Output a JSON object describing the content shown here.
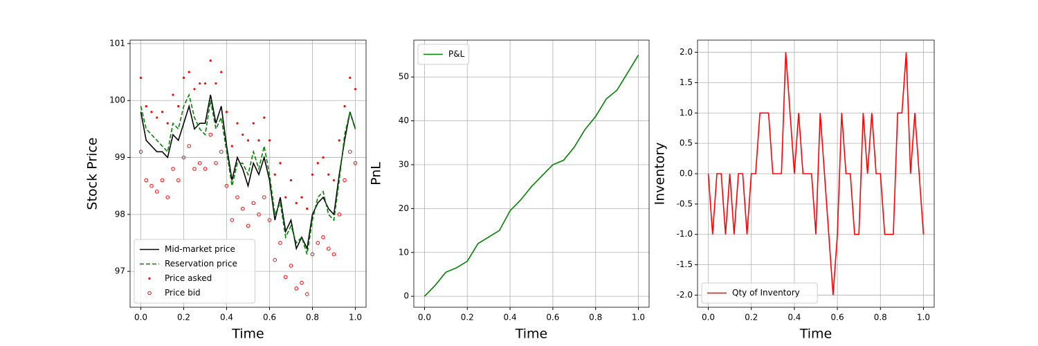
{
  "chart_data": [
    {
      "type": "line",
      "xlabel": "Time",
      "ylabel": "Stock Price",
      "x": [
        0,
        0.025,
        0.05,
        0.075,
        0.1,
        0.125,
        0.15,
        0.175,
        0.2,
        0.225,
        0.25,
        0.275,
        0.3,
        0.325,
        0.35,
        0.375,
        0.4,
        0.425,
        0.45,
        0.475,
        0.5,
        0.525,
        0.55,
        0.575,
        0.6,
        0.625,
        0.65,
        0.675,
        0.7,
        0.725,
        0.75,
        0.775,
        0.8,
        0.825,
        0.85,
        0.875,
        0.9,
        0.925,
        0.95,
        0.975,
        1.0
      ],
      "series": [
        {
          "name": "Mid-market price",
          "color": "#000000",
          "style": "solid",
          "values": [
            99.8,
            99.3,
            99.2,
            99.1,
            99.1,
            99.0,
            99.4,
            99.3,
            99.6,
            99.9,
            99.5,
            99.6,
            99.6,
            100.1,
            99.6,
            99.9,
            99.2,
            98.6,
            99.0,
            98.8,
            98.5,
            98.9,
            98.7,
            99.0,
            98.6,
            97.9,
            98.3,
            97.7,
            97.9,
            97.4,
            97.6,
            97.4,
            98.0,
            98.2,
            98.3,
            98.1,
            98.0,
            98.7,
            99.3,
            99.8,
            99.5
          ]
        },
        {
          "name": "Reservation price",
          "color": "#008000",
          "style": "dashed",
          "values": [
            99.9,
            99.5,
            99.4,
            99.3,
            99.2,
            99.1,
            99.6,
            99.5,
            99.9,
            100.1,
            99.7,
            99.5,
            99.4,
            100.0,
            99.5,
            99.7,
            99.1,
            98.5,
            98.9,
            98.9,
            98.7,
            99.1,
            98.8,
            99.2,
            98.7,
            98.0,
            98.2,
            97.6,
            97.8,
            97.5,
            97.6,
            97.3,
            97.9,
            98.3,
            98.4,
            98.0,
            97.9,
            98.6,
            99.4,
            99.8,
            99.5
          ]
        },
        {
          "name": "Price asked",
          "color": "#ff0000",
          "style": "dot",
          "values": [
            100.4,
            99.9,
            99.8,
            99.7,
            99.8,
            99.6,
            100.1,
            99.9,
            100.4,
            100.5,
            100.2,
            100.3,
            100.3,
            100.7,
            100.3,
            100.5,
            99.8,
            99.2,
            99.6,
            99.4,
            99.3,
            99.6,
            99.3,
            99.7,
            99.3,
            98.7,
            98.9,
            98.3,
            98.6,
            98.2,
            98.3,
            98.1,
            98.7,
            98.9,
            99.0,
            98.7,
            98.6,
            99.3,
            99.9,
            100.4,
            100.2
          ]
        },
        {
          "name": "Price bid",
          "color": "#ff0000",
          "style": "circle",
          "values": [
            99.1,
            98.6,
            98.5,
            98.4,
            98.6,
            98.3,
            98.8,
            98.6,
            99.0,
            99.2,
            98.8,
            98.9,
            98.8,
            99.4,
            98.9,
            99.1,
            98.5,
            97.9,
            98.3,
            98.1,
            97.8,
            98.2,
            98.0,
            98.3,
            97.9,
            97.2,
            97.5,
            96.9,
            97.1,
            96.7,
            96.8,
            96.6,
            97.3,
            97.5,
            97.6,
            97.4,
            97.3,
            98.0,
            98.6,
            99.1,
            98.9
          ]
        }
      ],
      "xlim": [
        -0.05,
        1.05
      ],
      "ylim": [
        96.37,
        101.06
      ],
      "xticks": [
        {
          "value": 0,
          "label": "0.0"
        },
        {
          "value": 0.2,
          "label": "0.2"
        },
        {
          "value": 0.4,
          "label": "0.4"
        },
        {
          "value": 0.6,
          "label": "0.6"
        },
        {
          "value": 0.8,
          "label": "0.8"
        },
        {
          "value": 1,
          "label": "1.0"
        }
      ],
      "yticks": [
        97,
        98,
        99,
        100,
        101
      ],
      "grid": true,
      "legend": "lower left"
    },
    {
      "type": "line",
      "xlabel": "Time",
      "ylabel": "PnL",
      "x": [
        0,
        0.05,
        0.1,
        0.15,
        0.2,
        0.25,
        0.3,
        0.35,
        0.4,
        0.45,
        0.5,
        0.55,
        0.6,
        0.65,
        0.7,
        0.75,
        0.8,
        0.85,
        0.9,
        0.95,
        1.0
      ],
      "series": [
        {
          "name": "P&L",
          "color": "#008000",
          "style": "solid",
          "values": [
            0,
            2.5,
            5.5,
            6.5,
            8,
            12,
            13.5,
            15,
            19.5,
            22,
            25,
            27.5,
            30,
            31,
            34,
            38,
            41,
            45,
            47,
            51,
            55
          ]
        }
      ],
      "xlim": [
        -0.05,
        1.05
      ],
      "ylim": [
        -2.5,
        58.4
      ],
      "xticks": [
        {
          "value": 0,
          "label": "0.0"
        },
        {
          "value": 0.2,
          "label": "0.2"
        },
        {
          "value": 0.4,
          "label": "0.4"
        },
        {
          "value": 0.6,
          "label": "0.6"
        },
        {
          "value": 0.8,
          "label": "0.8"
        },
        {
          "value": 1,
          "label": "1.0"
        }
      ],
      "yticks": [
        0,
        10,
        20,
        30,
        40,
        50
      ],
      "grid": true,
      "legend": "upper left"
    },
    {
      "type": "line",
      "xlabel": "Time",
      "ylabel": "Inventory",
      "x": [
        0,
        0.02,
        0.04,
        0.06,
        0.08,
        0.1,
        0.12,
        0.14,
        0.16,
        0.18,
        0.2,
        0.22,
        0.24,
        0.26,
        0.28,
        0.3,
        0.32,
        0.34,
        0.36,
        0.38,
        0.4,
        0.42,
        0.44,
        0.46,
        0.48,
        0.5,
        0.52,
        0.54,
        0.56,
        0.58,
        0.6,
        0.62,
        0.64,
        0.66,
        0.68,
        0.7,
        0.72,
        0.74,
        0.76,
        0.78,
        0.8,
        0.82,
        0.84,
        0.86,
        0.88,
        0.9,
        0.92,
        0.94,
        0.96,
        0.98,
        1.0
      ],
      "series": [
        {
          "name": "Qty of Inventory",
          "color": "#ff0000",
          "style": "solid",
          "values": [
            0,
            -1,
            0,
            0,
            -1,
            0,
            -1,
            0,
            0,
            -1,
            0,
            0,
            1,
            1,
            1,
            0,
            0,
            0,
            2,
            1,
            0,
            1,
            0,
            0,
            0,
            -1,
            1,
            0,
            -1,
            -2,
            -1,
            1,
            0,
            0,
            -1,
            -1,
            1,
            0,
            1,
            0,
            0,
            -1,
            -1,
            -1,
            1,
            1,
            2,
            0,
            1,
            0,
            -1
          ]
        }
      ],
      "xlim": [
        -0.05,
        1.05
      ],
      "ylim": [
        -2.2,
        2.2
      ],
      "xticks": [
        {
          "value": 0,
          "label": "0.0"
        },
        {
          "value": 0.2,
          "label": "0.2"
        },
        {
          "value": 0.4,
          "label": "0.4"
        },
        {
          "value": 0.6,
          "label": "0.6"
        },
        {
          "value": 0.8,
          "label": "0.8"
        },
        {
          "value": 1,
          "label": "1.0"
        }
      ],
      "yticks": [
        {
          "value": -2,
          "label": "-2.0"
        },
        {
          "value": -1.5,
          "label": "-1.5"
        },
        {
          "value": -1,
          "label": "-1.0"
        },
        {
          "value": -0.5,
          "label": "-0.5"
        },
        {
          "value": 0,
          "label": "0.0"
        },
        {
          "value": 0.5,
          "label": "0.5"
        },
        {
          "value": 1,
          "label": "1.0"
        },
        {
          "value": 1.5,
          "label": "1.5"
        },
        {
          "value": 2,
          "label": "2.0"
        }
      ],
      "grid": true,
      "legend": "lower left"
    }
  ]
}
